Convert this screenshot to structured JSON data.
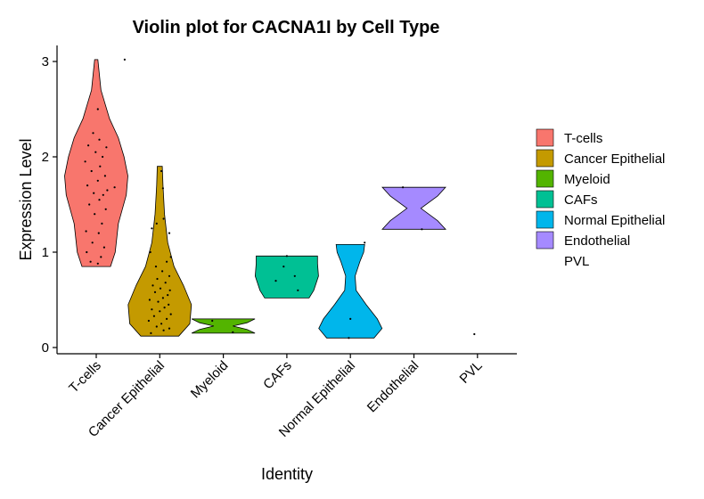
{
  "chart_data": {
    "type": "violin",
    "title": "Violin plot for CACNA1I by Cell Type",
    "xlabel": "Identity",
    "ylabel": "Expression Level",
    "categories": [
      "T-cells",
      "Cancer Epithelial",
      "Myeloid",
      "CAFs",
      "Normal Epithelial",
      "Endothelial",
      "PVL"
    ],
    "yticks": [
      0,
      1,
      2,
      3
    ],
    "ylim": [
      -0.08,
      3.18
    ],
    "legend_position": "right",
    "grid": false,
    "series": [
      {
        "name": "T-cells",
        "color": "#F8766D",
        "min": 0.85,
        "max": 3.02,
        "profile": [
          [
            0.85,
            0.45
          ],
          [
            1.0,
            0.6
          ],
          [
            1.3,
            0.7
          ],
          [
            1.6,
            0.95
          ],
          [
            1.8,
            1.0
          ],
          [
            2.0,
            0.88
          ],
          [
            2.2,
            0.7
          ],
          [
            2.4,
            0.42
          ],
          [
            2.7,
            0.15
          ],
          [
            3.02,
            0.05
          ]
        ],
        "points": [
          [
            0.05,
            0.88
          ],
          [
            -0.18,
            0.9
          ],
          [
            0.15,
            0.95
          ],
          [
            -0.3,
            1.0
          ],
          [
            0.25,
            1.05
          ],
          [
            -0.12,
            1.1
          ],
          [
            0.08,
            1.2
          ],
          [
            -0.32,
            1.22
          ],
          [
            0.18,
            1.3
          ],
          [
            -0.05,
            1.4
          ],
          [
            0.3,
            1.45
          ],
          [
            -0.22,
            1.5
          ],
          [
            0.1,
            1.55
          ],
          [
            0.22,
            1.6
          ],
          [
            -0.08,
            1.62
          ],
          [
            0.35,
            1.65
          ],
          [
            -0.28,
            1.7
          ],
          [
            0.05,
            1.75
          ],
          [
            0.28,
            1.8
          ],
          [
            -0.15,
            1.85
          ],
          [
            0.12,
            1.9
          ],
          [
            -0.35,
            1.95
          ],
          [
            0.2,
            2.0
          ],
          [
            -0.02,
            2.05
          ],
          [
            0.32,
            2.1
          ],
          [
            -0.25,
            2.12
          ],
          [
            0.1,
            2.18
          ],
          [
            -0.1,
            2.25
          ],
          [
            0.05,
            2.5
          ],
          [
            0.9,
            3.02
          ],
          [
            0.58,
            1.68
          ]
        ]
      },
      {
        "name": "Cancer Epithelial",
        "color": "#C49A00",
        "min": 0.12,
        "max": 1.9,
        "profile": [
          [
            0.12,
            0.6
          ],
          [
            0.25,
            0.95
          ],
          [
            0.45,
            1.0
          ],
          [
            0.65,
            0.75
          ],
          [
            0.85,
            0.45
          ],
          [
            1.1,
            0.25
          ],
          [
            1.4,
            0.15
          ],
          [
            1.7,
            0.1
          ],
          [
            1.9,
            0.08
          ]
        ],
        "points": [
          [
            -0.28,
            0.15
          ],
          [
            0.12,
            0.18
          ],
          [
            0.3,
            0.2
          ],
          [
            -0.1,
            0.22
          ],
          [
            0.05,
            0.25
          ],
          [
            -0.35,
            0.28
          ],
          [
            0.22,
            0.3
          ],
          [
            -0.18,
            0.33
          ],
          [
            0.35,
            0.35
          ],
          [
            0.0,
            0.38
          ],
          [
            -0.25,
            0.4
          ],
          [
            0.15,
            0.42
          ],
          [
            0.28,
            0.45
          ],
          [
            -0.05,
            0.48
          ],
          [
            -0.32,
            0.5
          ],
          [
            0.1,
            0.52
          ],
          [
            0.25,
            0.55
          ],
          [
            -0.15,
            0.58
          ],
          [
            0.32,
            0.6
          ],
          [
            0.02,
            0.62
          ],
          [
            -0.22,
            0.65
          ],
          [
            0.18,
            0.68
          ],
          [
            -0.08,
            0.72
          ],
          [
            0.3,
            0.75
          ],
          [
            0.08,
            0.8
          ],
          [
            -0.12,
            0.85
          ],
          [
            0.22,
            0.9
          ],
          [
            0.35,
            0.95
          ],
          [
            -0.3,
            1.0
          ],
          [
            0.3,
            1.2
          ],
          [
            -0.25,
            1.25
          ],
          [
            -0.1,
            1.3
          ],
          [
            0.12,
            1.35
          ],
          [
            0.05,
            1.85
          ],
          [
            0.1,
            1.67
          ]
        ]
      },
      {
        "name": "Myeloid",
        "color": "#53B400",
        "min": 0.15,
        "max": 0.3,
        "profile": [
          [
            0.15,
            1.0
          ],
          [
            0.19,
            0.75
          ],
          [
            0.225,
            0.3
          ],
          [
            0.26,
            0.75
          ],
          [
            0.3,
            1.0
          ]
        ],
        "points": [
          [
            -0.35,
            0.28
          ],
          [
            0.3,
            0.16
          ]
        ]
      },
      {
        "name": "CAFs",
        "color": "#00C094",
        "min": 0.52,
        "max": 0.96,
        "profile": [
          [
            0.52,
            0.7
          ],
          [
            0.6,
            0.85
          ],
          [
            0.75,
            1.0
          ],
          [
            0.88,
            0.97
          ],
          [
            0.96,
            0.97
          ]
        ],
        "points": [
          [
            0.0,
            0.96
          ],
          [
            0.25,
            0.75
          ],
          [
            -0.1,
            0.85
          ],
          [
            -0.35,
            0.7
          ],
          [
            0.35,
            0.6
          ]
        ]
      },
      {
        "name": "Normal Epithelial",
        "color": "#00B6EB",
        "min": 0.1,
        "max": 1.08,
        "profile": [
          [
            0.1,
            0.75
          ],
          [
            0.2,
            1.0
          ],
          [
            0.3,
            0.85
          ],
          [
            0.45,
            0.5
          ],
          [
            0.6,
            0.18
          ],
          [
            0.75,
            0.15
          ],
          [
            0.9,
            0.3
          ],
          [
            1.0,
            0.42
          ],
          [
            1.08,
            0.45
          ]
        ],
        "points": [
          [
            -0.05,
            0.1
          ],
          [
            0.0,
            0.3
          ],
          [
            0.45,
            1.1
          ]
        ]
      },
      {
        "name": "Endothelial",
        "color": "#A58AFF",
        "min": 1.24,
        "max": 1.68,
        "profile": [
          [
            1.24,
            1.0
          ],
          [
            1.33,
            0.75
          ],
          [
            1.46,
            0.22
          ],
          [
            1.59,
            0.75
          ],
          [
            1.68,
            1.0
          ]
        ],
        "points": [
          [
            -0.35,
            1.68
          ],
          [
            0.25,
            1.24
          ]
        ]
      },
      {
        "name": "PVL",
        "color": "#FB61D7",
        "min": null,
        "max": null,
        "profile": [],
        "points": [
          [
            -0.1,
            0.14
          ]
        ]
      }
    ]
  }
}
